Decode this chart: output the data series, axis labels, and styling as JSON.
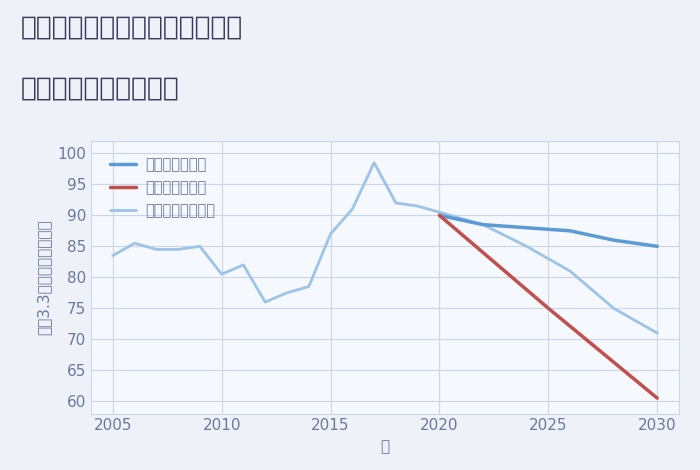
{
  "title_line1": "兵庫県たつの市揖保川町養久の",
  "title_line2": "中古戸建ての価格推移",
  "xlabel": "年",
  "ylabel": "坪（3.3㎡）単価（万円）",
  "xlim": [
    2004,
    2031
  ],
  "ylim": [
    58,
    102
  ],
  "yticks": [
    60,
    65,
    70,
    75,
    80,
    85,
    90,
    95,
    100
  ],
  "xticks": [
    2005,
    2010,
    2015,
    2020,
    2025,
    2030
  ],
  "good_scenario": {
    "x": [
      2020,
      2022,
      2024,
      2026,
      2028,
      2030
    ],
    "y": [
      90,
      88.5,
      88,
      87.5,
      86,
      85
    ],
    "color": "#5b9bd5",
    "label": "グッドシナリオ",
    "linewidth": 2.5
  },
  "bad_scenario": {
    "x": [
      2020,
      2025,
      2030
    ],
    "y": [
      90,
      75,
      60.5
    ],
    "color": "#c0504d",
    "label": "バッドシナリオ",
    "linewidth": 2.5
  },
  "normal_scenario_hist": {
    "x": [
      2005,
      2006,
      2007,
      2008,
      2009,
      2010,
      2011,
      2012,
      2013,
      2014,
      2015,
      2016,
      2017,
      2018,
      2019,
      2020
    ],
    "y": [
      83.5,
      85.5,
      84.5,
      84.5,
      85.0,
      80.5,
      82.0,
      76.0,
      77.5,
      78.5,
      87.0,
      91.0,
      98.5,
      92.0,
      91.5,
      90.5
    ],
    "color": "#9dc3e6",
    "label": "ノーマルシナリオ",
    "linewidth": 2.0
  },
  "normal_scenario_future": {
    "x": [
      2020,
      2022,
      2024,
      2026,
      2028,
      2030
    ],
    "y": [
      90.5,
      88.5,
      85.0,
      81.0,
      75.0,
      71.0
    ],
    "color": "#9dc3e6",
    "linewidth": 2.0
  },
  "background_color": "#eef2f8",
  "plot_bg_color": "#f5f8fc",
  "grid_color": "#ccd6e8",
  "title_color": "#3a3a5a",
  "label_color": "#6a7a9a",
  "tick_color": "#6a7a9a",
  "title_fontsize": 19,
  "axis_fontsize": 11,
  "legend_fontsize": 10.5
}
